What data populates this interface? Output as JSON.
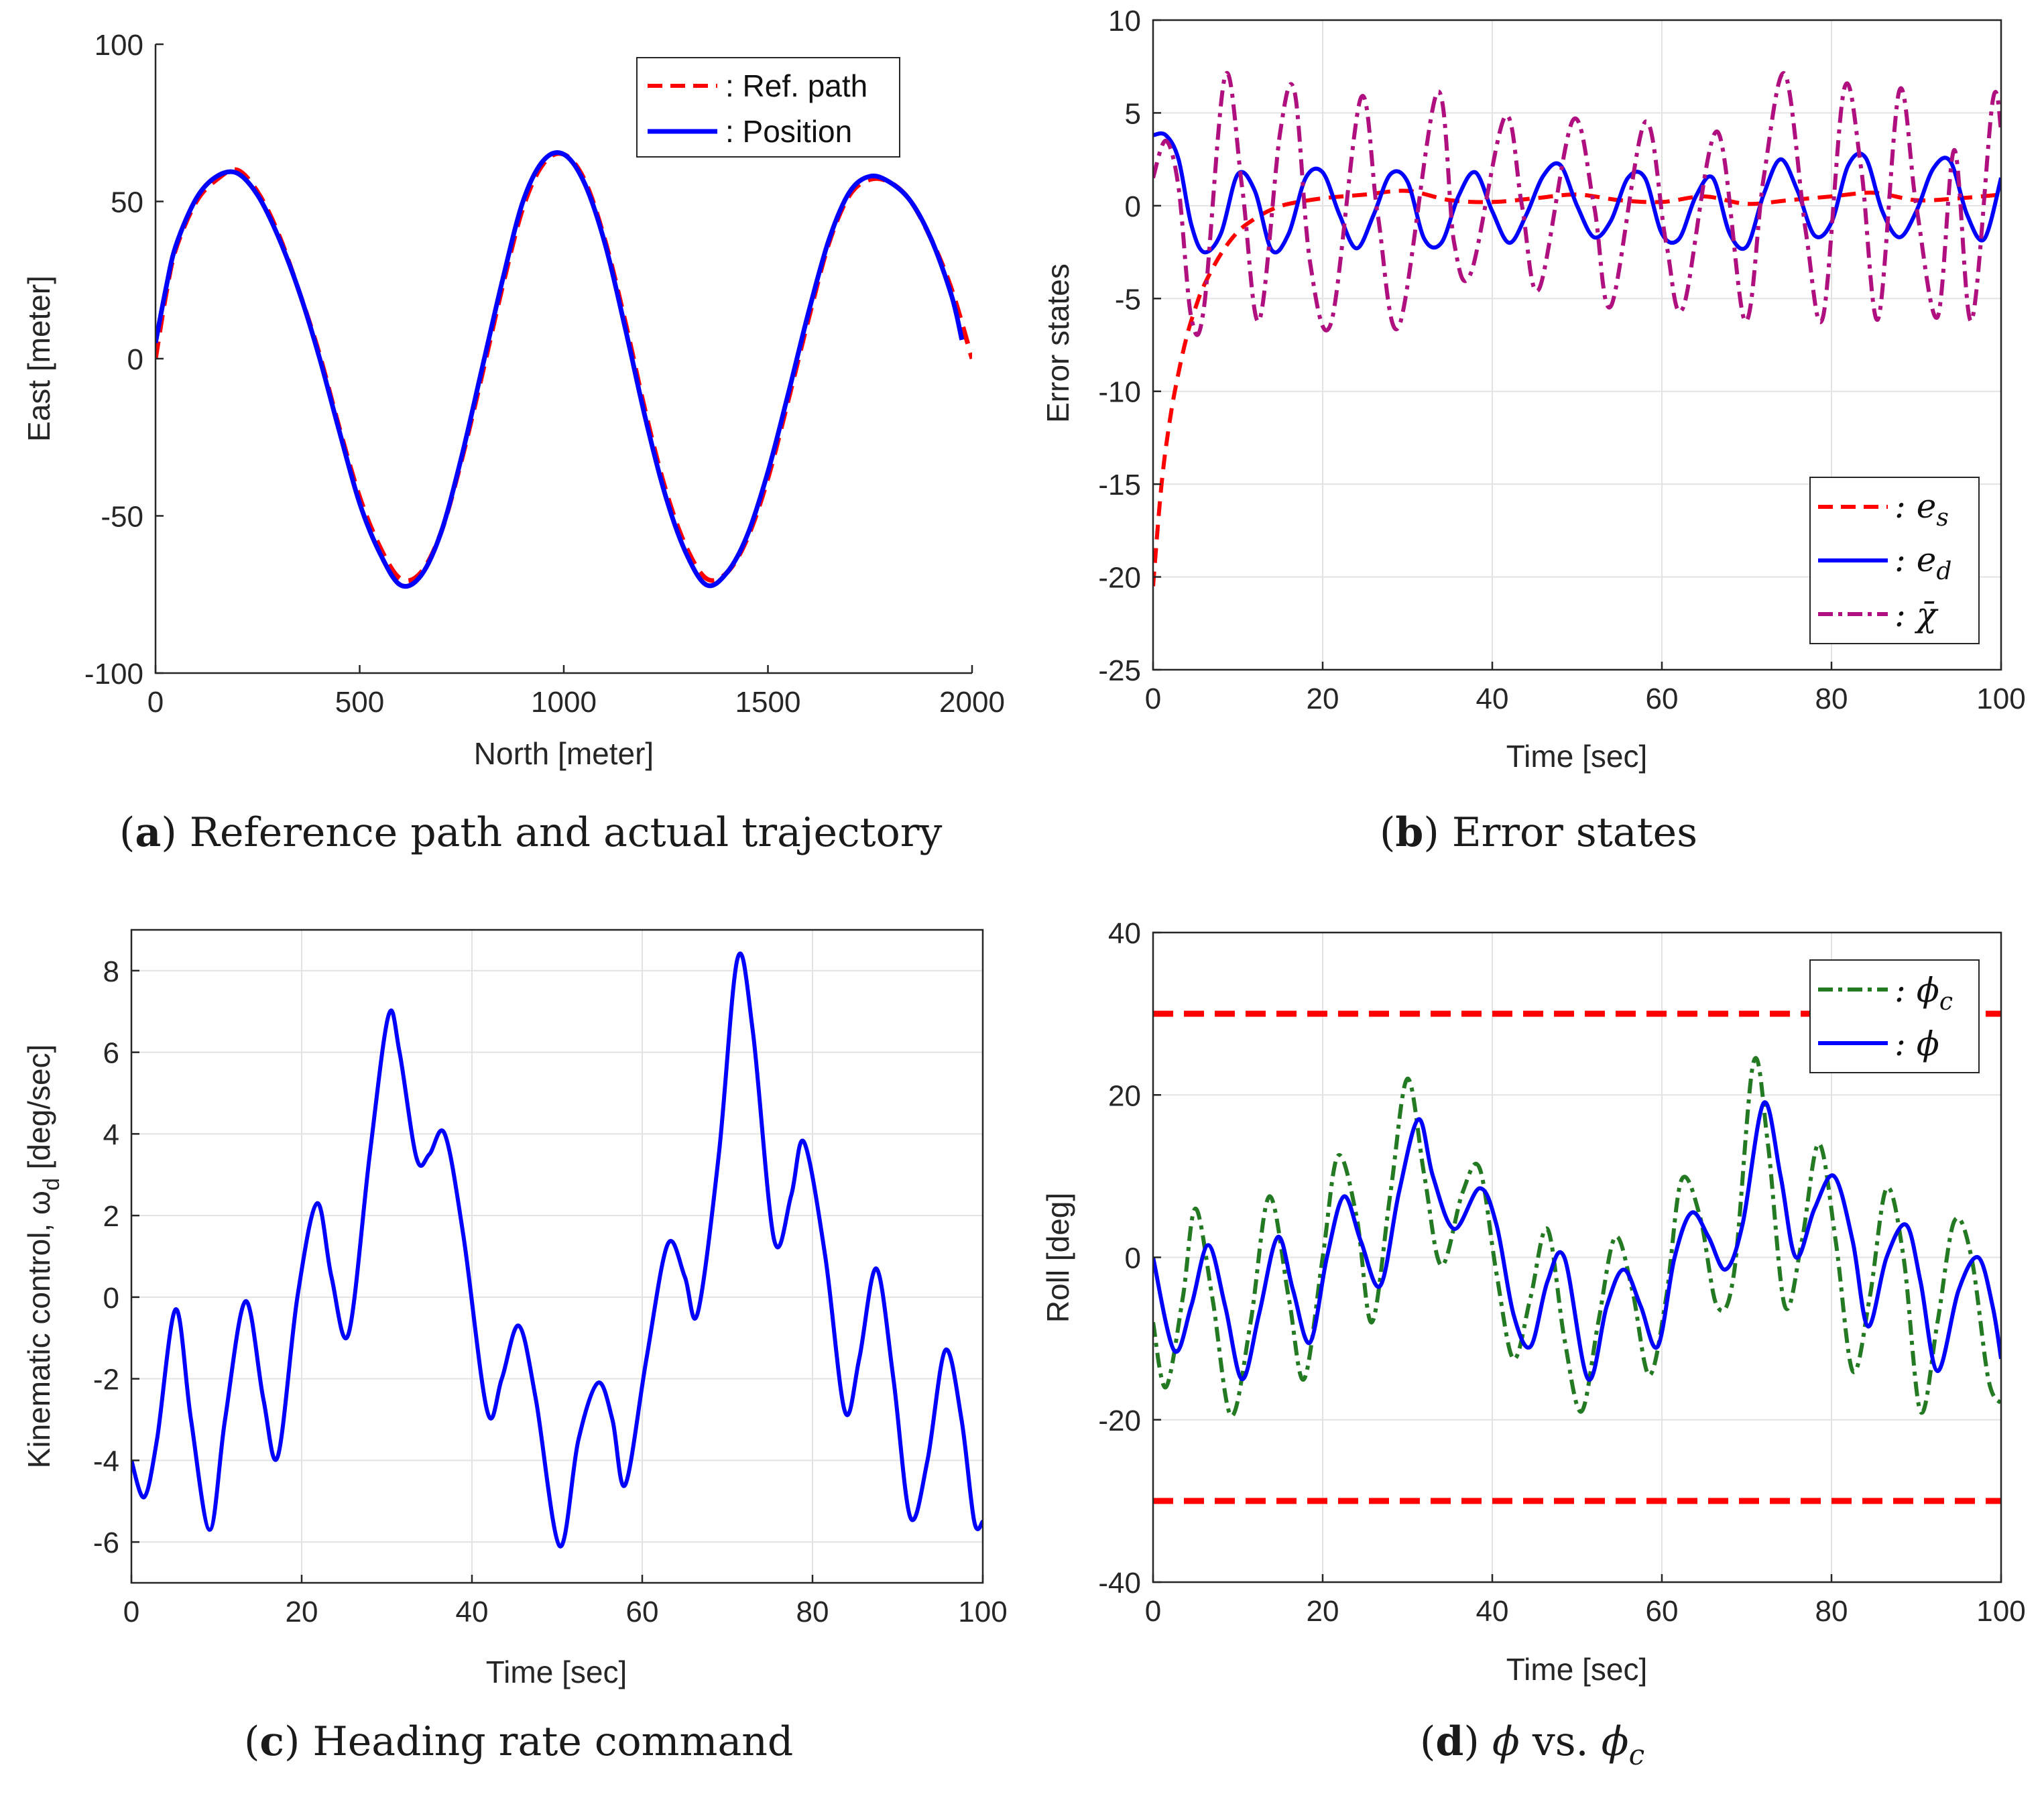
{
  "chart_data": [
    {
      "id": "a",
      "type": "line",
      "title": "",
      "caption_letter": "a",
      "caption_text": "Reference path and actual trajectory",
      "xlabel": "North [meter]",
      "ylabel": "East [meter]",
      "xlim": [
        0,
        2000
      ],
      "ylim": [
        -100,
        100
      ],
      "xticks": [
        0,
        500,
        1000,
        1500,
        2000
      ],
      "yticks": [
        -100,
        -50,
        0,
        50,
        100
      ],
      "grid": false,
      "legend_position": "top-right",
      "series": [
        {
          "name": ": Ref. path",
          "color": "#ff0000",
          "style": "dashed",
          "x": [
            0,
            25,
            50,
            100,
            150,
            200,
            250,
            300,
            350,
            400,
            450,
            500,
            550,
            600,
            650,
            700,
            750,
            800,
            850,
            900,
            950,
            1000,
            1050,
            1100,
            1150,
            1200,
            1250,
            1300,
            1350,
            1400,
            1450,
            1500,
            1550,
            1600,
            1650,
            1700,
            1750,
            1800,
            1850,
            1900,
            1950,
            2000
          ],
          "y": [
            0,
            20,
            35,
            50,
            57,
            60,
            53,
            40,
            22,
            2,
            -22,
            -44,
            -60,
            -70,
            -68,
            -55,
            -32,
            -5,
            23,
            48,
            62,
            65,
            57,
            38,
            12,
            -17,
            -42,
            -60,
            -70,
            -68,
            -57,
            -38,
            -13,
            13,
            37,
            52,
            57,
            56,
            50,
            38,
            22,
            0
          ]
        },
        {
          "name": ": Position",
          "color": "#0000ff",
          "style": "solid",
          "x": [
            0,
            25,
            50,
            100,
            150,
            200,
            250,
            300,
            350,
            400,
            450,
            500,
            550,
            600,
            650,
            700,
            750,
            800,
            850,
            900,
            950,
            1000,
            1050,
            1100,
            1150,
            1200,
            1250,
            1300,
            1350,
            1400,
            1450,
            1500,
            1550,
            1600,
            1650,
            1700,
            1750,
            1800,
            1850,
            1900,
            1950,
            1975
          ],
          "y": [
            5,
            22,
            36,
            51,
            58,
            59,
            52,
            39,
            22,
            1,
            -23,
            -46,
            -62,
            -72,
            -69,
            -55,
            -31,
            -3,
            25,
            50,
            63,
            65,
            56,
            37,
            10,
            -19,
            -44,
            -62,
            -72,
            -68,
            -56,
            -36,
            -11,
            15,
            38,
            53,
            58,
            56,
            50,
            38,
            20,
            6
          ]
        }
      ]
    },
    {
      "id": "b",
      "type": "line",
      "title": "",
      "caption_letter": "b",
      "caption_text": "Error states",
      "xlabel": "Time [sec]",
      "ylabel": "Error states",
      "xlim": [
        0,
        100
      ],
      "ylim": [
        -25,
        10
      ],
      "xticks": [
        0,
        20,
        40,
        60,
        80,
        100
      ],
      "yticks": [
        -25,
        -20,
        -15,
        -10,
        -5,
        0,
        5,
        10
      ],
      "grid": true,
      "legend_position": "bottom-right",
      "series": [
        {
          "name": "e_s",
          "legend_main": ":  e",
          "legend_sub": "s",
          "color": "#ff0000",
          "style": "dashed",
          "x": [
            0,
            1,
            2,
            3,
            4,
            5,
            6,
            8,
            10,
            12,
            14,
            16,
            20,
            25,
            30,
            35,
            40,
            45,
            50,
            55,
            60,
            65,
            70,
            75,
            80,
            85,
            90,
            95,
            100
          ],
          "y": [
            -20.5,
            -15,
            -11.5,
            -9,
            -7,
            -5.5,
            -4.3,
            -2.6,
            -1.4,
            -0.7,
            -0.2,
            0.1,
            0.4,
            0.6,
            0.8,
            0.3,
            0.2,
            0.4,
            0.6,
            0.3,
            0.2,
            0.5,
            0.1,
            0.3,
            0.5,
            0.7,
            0.3,
            0.4,
            0.6
          ]
        },
        {
          "name": "e_d",
          "legend_main": ":  e",
          "legend_sub": "d",
          "color": "#0000ff",
          "style": "solid",
          "x": [
            0,
            1.5,
            3,
            4.5,
            6,
            8,
            10,
            12,
            14,
            16,
            18,
            20,
            22,
            24,
            26,
            28,
            30,
            32,
            34,
            36,
            38,
            40,
            42,
            44,
            46,
            48,
            50,
            52,
            54,
            56,
            58,
            60,
            62,
            64,
            66,
            68,
            70,
            72,
            74,
            76,
            78,
            80,
            82,
            84,
            86,
            88,
            90,
            92,
            94,
            96,
            98,
            100
          ],
          "y": [
            3.8,
            3.8,
            2.5,
            -1,
            -2.5,
            -1.5,
            1.7,
            0.8,
            -2.4,
            -1.5,
            1.5,
            1.8,
            -0.5,
            -2.3,
            -0.5,
            1.7,
            1.3,
            -1.8,
            -2,
            0.5,
            1.8,
            -0.3,
            -2,
            -0.5,
            1.6,
            2.2,
            0,
            -1.7,
            -0.8,
            1.5,
            1.5,
            -1.5,
            -1.8,
            0.5,
            1.5,
            -1.5,
            -2.2,
            0.6,
            2.5,
            0.8,
            -1.6,
            -0.9,
            2.2,
            2.6,
            -0.3,
            -1.7,
            -0.3,
            2,
            2.4,
            -0.5,
            -1.8,
            1.5
          ]
        },
        {
          "name": "chi_bar",
          "legend_main": ":  χ̄",
          "legend_sub": "",
          "color": "#b0107f",
          "style": "dashdot",
          "x": [
            0,
            1.5,
            3,
            4.5,
            6,
            8.5,
            10.5,
            12.5,
            15,
            16.7,
            18.5,
            21,
            24.5,
            26.5,
            29,
            33.5,
            35.5,
            37.5,
            41.5,
            43.5,
            45.5,
            49.5,
            52,
            54,
            58,
            60.5,
            62.5,
            66.5,
            69.8,
            72,
            74.5,
            77,
            79,
            81.5,
            83.5,
            85.5,
            88,
            90,
            92.5,
            94.5,
            96.5,
            99,
            100
          ],
          "y": [
            1.5,
            3.5,
            1,
            -6,
            -5.5,
            7,
            1,
            -6.2,
            4,
            6.1,
            -3,
            -6.3,
            5.8,
            -0.5,
            -6.5,
            6.1,
            -2,
            -3.6,
            4.8,
            0,
            -4.5,
            4.6,
            0,
            -5.4,
            4.5,
            -2,
            -5.5,
            4,
            -6.2,
            1.5,
            7.1,
            -1.5,
            -6,
            6.3,
            2,
            -6.1,
            6.2,
            0,
            -6,
            3,
            -6.2,
            5.6,
            4.1
          ]
        }
      ]
    },
    {
      "id": "c",
      "type": "line",
      "title": "",
      "caption_letter": "c",
      "caption_text": "Heading rate command",
      "xlabel": "Time [sec]",
      "ylabel_main": "Kinematic control, ω",
      "ylabel_sub": "d",
      "ylabel_tail": " [deg/sec]",
      "xlim": [
        0,
        100
      ],
      "ylim": [
        -7,
        9
      ],
      "xticks": [
        0,
        20,
        40,
        60,
        80,
        100
      ],
      "yticks": [
        -6,
        -4,
        -2,
        0,
        2,
        4,
        6,
        8
      ],
      "grid": true,
      "series": [
        {
          "name": "omega_d",
          "color": "#0000ff",
          "style": "solid",
          "x": [
            0,
            1.5,
            3,
            5.2,
            7,
            9.2,
            11,
            13.4,
            15.5,
            17.2,
            19.5,
            21.8,
            23.5,
            25.5,
            28,
            30.2,
            31.5,
            33.5,
            35,
            36.8,
            39,
            41.8,
            43.5,
            45.5,
            47.5,
            50.3,
            52.5,
            54.8,
            56.5,
            58,
            60.5,
            63,
            65,
            66.5,
            69,
            71.2,
            73,
            75.5,
            77.5,
            79,
            81.5,
            83.8,
            85.5,
            87.5,
            89.5,
            91.5,
            93.5,
            95.6,
            97.5,
            99,
            100
          ],
          "y": [
            -4,
            -4.9,
            -3.5,
            -0.3,
            -3,
            -5.7,
            -3,
            -0.1,
            -2.5,
            -3.9,
            0,
            2.3,
            0.5,
            -0.9,
            3.5,
            6.9,
            6,
            3.4,
            3.5,
            4,
            1.5,
            -2.8,
            -2,
            -0.7,
            -2.5,
            -6.1,
            -3.5,
            -2.1,
            -3,
            -4.6,
            -1.5,
            1.3,
            0.5,
            -0.4,
            3.5,
            8.3,
            6.5,
            1.4,
            2.5,
            3.8,
            1,
            -2.8,
            -1.5,
            0.7,
            -2,
            -5.4,
            -4,
            -1.3,
            -3,
            -5.5,
            -5.5
          ]
        }
      ]
    },
    {
      "id": "d",
      "type": "line",
      "title": "",
      "caption_letter": "d",
      "caption_text_parts": [
        "ϕ",
        " vs. ",
        "ϕ",
        "c"
      ],
      "xlabel": "Time [sec]",
      "ylabel": "Roll [deg]",
      "xlim": [
        0,
        100
      ],
      "ylim": [
        -40,
        40
      ],
      "xticks": [
        0,
        20,
        40,
        60,
        80,
        100
      ],
      "yticks": [
        -40,
        -20,
        0,
        20,
        40
      ],
      "grid": true,
      "legend_position": "top-right",
      "limit_lines": [
        30,
        -30
      ],
      "limit_color": "#ff0000",
      "series": [
        {
          "name": "phi_c",
          "legend_main": ":  ϕ",
          "legend_sub": "c",
          "color": "#237a23",
          "style": "dashdot",
          "x": [
            0,
            1.5,
            3.5,
            5,
            7,
            9.2,
            11.5,
            13.7,
            16,
            17.8,
            20,
            21.8,
            24,
            25.8,
            28,
            30,
            32,
            34,
            36.5,
            38.5,
            40.5,
            42.5,
            44.5,
            46.5,
            48.5,
            50.5,
            52.5,
            54.5,
            56.5,
            58.5,
            60.5,
            62.3,
            64.5,
            66.5,
            68.5,
            70.8,
            72.5,
            74.5,
            76.5,
            78.5,
            80.5,
            82.5,
            84.5,
            86.5,
            88.5,
            90.5,
            92.5,
            94.5,
            96.5,
            98.5,
            100
          ],
          "y": [
            -8,
            -16,
            -5,
            6,
            -5,
            -19.5,
            -8,
            7.5,
            -5,
            -15,
            0,
            12.5,
            5,
            -8,
            8,
            22,
            10,
            -1,
            8,
            11,
            -2,
            -12.5,
            -5,
            3.5,
            -10,
            -19,
            -8,
            2.5,
            -4,
            -14.5,
            -5,
            9.5,
            5,
            -6,
            -2,
            24,
            14,
            -6,
            2,
            14,
            2,
            -14,
            -5,
            8.5,
            0,
            -19,
            -8,
            4.5,
            0,
            -15,
            -18
          ]
        },
        {
          "name": "phi",
          "legend_main": ":  ϕ",
          "legend_sub": "",
          "color": "#0000ff",
          "style": "solid",
          "x": [
            0,
            2.5,
            4.5,
            6.5,
            8.5,
            10.5,
            12.5,
            14.7,
            16.5,
            18.5,
            20.5,
            22.5,
            24.5,
            26.8,
            29,
            31.3,
            33,
            35.5,
            38.5,
            40.5,
            42.5,
            44.5,
            46.5,
            48.5,
            51.3,
            53.5,
            55.5,
            57.5,
            59.5,
            61.5,
            63.5,
            65.5,
            67.5,
            69.5,
            72,
            74,
            75.8,
            78,
            80.3,
            82.5,
            84.3,
            86.5,
            88.8,
            90.5,
            92.5,
            95,
            97.3,
            99,
            100
          ],
          "y": [
            0,
            -11.5,
            -6,
            1.5,
            -6,
            -15,
            -7,
            2.5,
            -4,
            -10.5,
            0,
            7.5,
            2,
            -3.5,
            8,
            17,
            10,
            3.5,
            8.5,
            4,
            -7,
            -11,
            -3,
            0,
            -15,
            -6,
            -1.5,
            -6,
            -11,
            0,
            5.5,
            2.5,
            -1.5,
            4,
            19,
            10,
            0,
            6,
            10,
            2,
            -8.5,
            0,
            4,
            -3,
            -14,
            -4,
            0,
            -6,
            -12.5
          ]
        }
      ]
    }
  ]
}
